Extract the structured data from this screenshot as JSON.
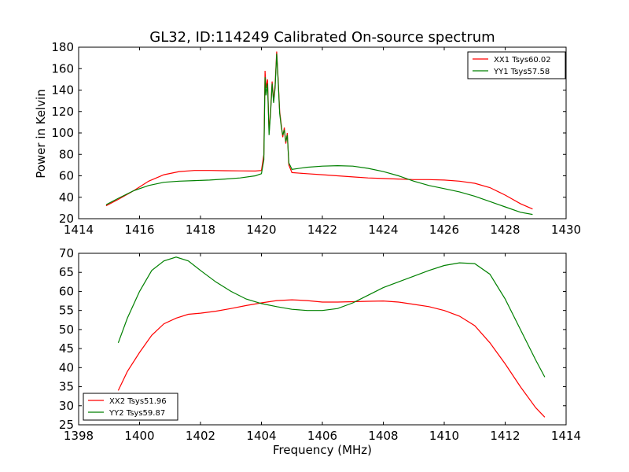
{
  "title": "GL32, ID:114249 Calibrated On-source spectrum",
  "xlabel": "Frequency (MHz)",
  "ylabel": "Power in Kelvin",
  "chart_data": [
    {
      "type": "line",
      "title": "GL32, ID:114249 Calibrated On-source spectrum",
      "xlabel": "",
      "ylabel": "Power in Kelvin",
      "xlim": [
        1414,
        1430
      ],
      "ylim": [
        20,
        180
      ],
      "xticks": [
        1414,
        1416,
        1418,
        1420,
        1422,
        1424,
        1426,
        1428,
        1430
      ],
      "yticks": [
        20,
        40,
        60,
        80,
        100,
        120,
        140,
        160,
        180
      ],
      "legend": "top-right",
      "grid": false,
      "series": [
        {
          "name": "XX1 Tsys60.02",
          "color": "#ff0000",
          "x": [
            1414.9,
            1415.3,
            1415.8,
            1416.3,
            1416.8,
            1417.3,
            1417.8,
            1418.3,
            1418.8,
            1419.3,
            1419.8,
            1420.0,
            1420.08,
            1420.12,
            1420.15,
            1420.2,
            1420.25,
            1420.3,
            1420.35,
            1420.4,
            1420.45,
            1420.5,
            1420.55,
            1420.6,
            1420.65,
            1420.7,
            1420.75,
            1420.8,
            1420.85,
            1420.9,
            1421.0,
            1421.5,
            1422.0,
            1422.5,
            1423.0,
            1423.5,
            1424.0,
            1424.5,
            1425.0,
            1425.5,
            1426.0,
            1426.5,
            1427.0,
            1427.5,
            1428.0,
            1428.5,
            1428.9
          ],
          "y": [
            32,
            38,
            46,
            55,
            61,
            64,
            65,
            65,
            64.8,
            64.6,
            64.5,
            65,
            80,
            158,
            142,
            150,
            100,
            120,
            148,
            130,
            145,
            176,
            150,
            120,
            108,
            96,
            105,
            90,
            100,
            70,
            63,
            62,
            61,
            60,
            59,
            58,
            57.5,
            57,
            56.5,
            56.5,
            56,
            55,
            53,
            49,
            42,
            34,
            29
          ]
        },
        {
          "name": "YY1 Tsys57.58",
          "color": "#008000",
          "x": [
            1414.9,
            1415.3,
            1415.8,
            1416.3,
            1416.8,
            1417.3,
            1417.8,
            1418.3,
            1418.8,
            1419.3,
            1419.8,
            1420.0,
            1420.08,
            1420.12,
            1420.15,
            1420.2,
            1420.25,
            1420.3,
            1420.35,
            1420.4,
            1420.45,
            1420.5,
            1420.55,
            1420.6,
            1420.65,
            1420.7,
            1420.75,
            1420.8,
            1420.85,
            1420.9,
            1421.0,
            1421.5,
            1422.0,
            1422.5,
            1423.0,
            1423.5,
            1424.0,
            1424.5,
            1425.0,
            1425.5,
            1426.0,
            1426.5,
            1427.0,
            1427.5,
            1428.0,
            1428.5,
            1428.9
          ],
          "y": [
            33,
            39,
            46,
            51,
            54,
            55,
            55.5,
            56,
            57,
            58,
            60,
            62,
            75,
            152,
            135,
            146,
            98,
            118,
            146,
            128,
            142,
            174,
            148,
            118,
            106,
            98,
            103,
            92,
            98,
            72,
            66,
            68,
            69,
            69.5,
            69,
            67,
            64,
            60,
            55,
            51,
            48,
            45,
            41,
            36,
            31,
            26,
            24
          ]
        }
      ]
    },
    {
      "type": "line",
      "title": "",
      "xlabel": "Frequency (MHz)",
      "ylabel": "",
      "xlim": [
        1398,
        1414
      ],
      "ylim": [
        25,
        70
      ],
      "xticks": [
        1398,
        1400,
        1402,
        1404,
        1406,
        1408,
        1410,
        1412,
        1414
      ],
      "yticks": [
        25,
        30,
        35,
        40,
        45,
        50,
        55,
        60,
        65,
        70
      ],
      "legend": "lower-left",
      "grid": false,
      "series": [
        {
          "name": "XX2 Tsys51.96",
          "color": "#ff0000",
          "x": [
            1399.3,
            1399.6,
            1400.0,
            1400.4,
            1400.8,
            1401.2,
            1401.6,
            1402.0,
            1402.5,
            1403.0,
            1403.5,
            1404.0,
            1404.5,
            1405.0,
            1405.5,
            1406.0,
            1406.5,
            1407.0,
            1407.5,
            1408.0,
            1408.5,
            1409.0,
            1409.5,
            1410.0,
            1410.5,
            1411.0,
            1411.5,
            1412.0,
            1412.5,
            1413.0,
            1413.3
          ],
          "y": [
            34,
            39,
            44,
            48.5,
            51.5,
            53,
            54,
            54.3,
            54.8,
            55.5,
            56.3,
            57,
            57.6,
            57.8,
            57.6,
            57.2,
            57.2,
            57.3,
            57.4,
            57.5,
            57.2,
            56.6,
            56,
            55,
            53.5,
            51,
            46.5,
            41,
            35,
            29.5,
            27
          ]
        },
        {
          "name": "YY2 Tsys59.87",
          "color": "#008000",
          "x": [
            1399.3,
            1399.6,
            1400.0,
            1400.4,
            1400.8,
            1401.2,
            1401.6,
            1402.0,
            1402.5,
            1403.0,
            1403.5,
            1404.0,
            1404.5,
            1405.0,
            1405.5,
            1406.0,
            1406.5,
            1407.0,
            1407.5,
            1408.0,
            1408.5,
            1409.0,
            1409.5,
            1410.0,
            1410.5,
            1411.0,
            1411.5,
            1412.0,
            1412.5,
            1413.0,
            1413.3
          ],
          "y": [
            46.5,
            53,
            60,
            65.5,
            68,
            69,
            68,
            65.5,
            62.5,
            60,
            58,
            56.8,
            56,
            55.3,
            55,
            55,
            55.5,
            57,
            59,
            61,
            62.5,
            64,
            65.5,
            66.8,
            67.5,
            67.3,
            64.5,
            58,
            50,
            42,
            37.5
          ]
        }
      ]
    }
  ]
}
